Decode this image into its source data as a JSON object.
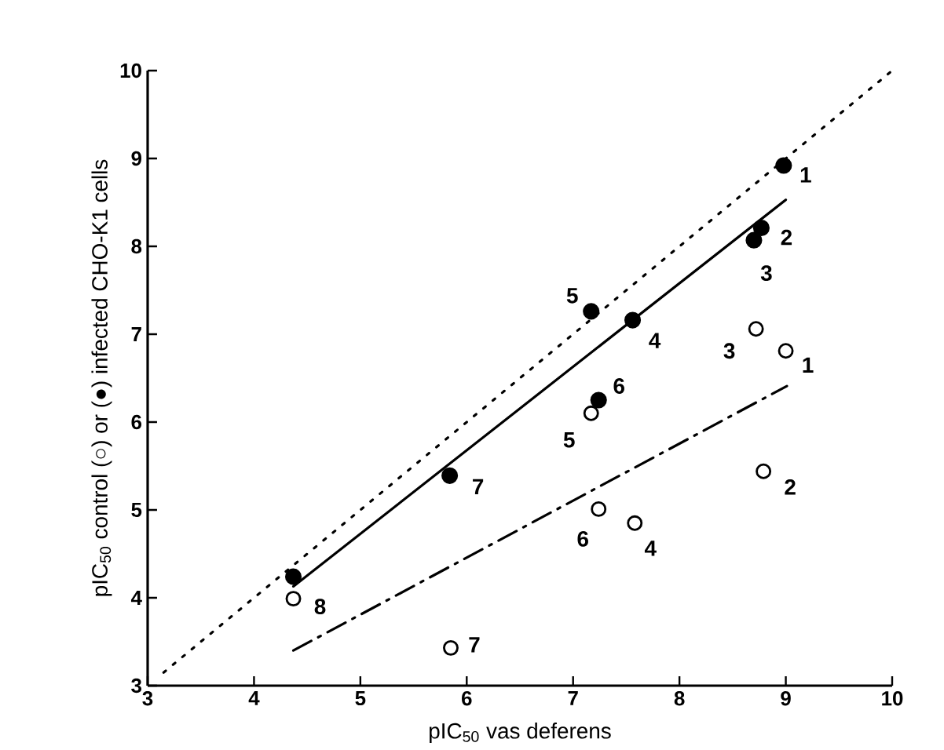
{
  "chart_data": {
    "type": "scatter",
    "xlabel": "pIC$_{50}$ vas deferens",
    "ylabel": "pIC$_{50}$ control (○) or (●) infected CHO-K1 cells",
    "xlim": [
      3,
      10
    ],
    "ylim": [
      3,
      10
    ],
    "xticks": [
      3,
      4,
      5,
      6,
      7,
      8,
      9,
      10
    ],
    "yticks": [
      3,
      4,
      5,
      6,
      7,
      8,
      9,
      10
    ],
    "series": [
      {
        "type": "line",
        "color": "#000000",
        "line_style": "dotted",
        "marker": "none",
        "x": [
          3.15,
          10
        ],
        "values": [
          3.15,
          10
        ]
      },
      {
        "type": "line",
        "color": "#000000",
        "line_style": "solid",
        "marker": "none",
        "x": [
          4.37,
          9.0
        ],
        "values": [
          4.13,
          8.53
        ]
      },
      {
        "type": "line",
        "color": "#000000",
        "line_style": "dashed",
        "marker": "none",
        "x": [
          4.37,
          9.01
        ],
        "values": [
          3.4,
          6.41
        ]
      },
      {
        "color": "#000000",
        "marker": "circle",
        "x": [
          8.98,
          8.77,
          8.7,
          7.56,
          7.17,
          7.24,
          5.84,
          4.37
        ],
        "values": [
          8.92,
          8.21,
          8.07,
          7.16,
          7.26,
          6.25,
          5.39,
          4.24
        ]
      },
      {
        "color": "#ffffff",
        "marker": "circle",
        "x": [
          9.0,
          8.79,
          8.72,
          7.58,
          7.17,
          7.24,
          5.85,
          4.37
        ],
        "values": [
          6.81,
          5.44,
          7.06,
          4.85,
          6.1,
          5.01,
          3.43,
          3.99
        ]
      }
    ],
    "annotations": [
      {
        "text": "1",
        "x": 8.98,
        "y": 8.92
      },
      {
        "text": "2",
        "x": 8.77,
        "y": 8.21
      },
      {
        "text": "3",
        "x": 8.7,
        "y": 8.07
      },
      {
        "text": "4",
        "x": 7.56,
        "y": 7.16
      },
      {
        "text": "5",
        "x": 7.17,
        "y": 7.26
      },
      {
        "text": "6",
        "x": 7.24,
        "y": 6.25
      },
      {
        "text": "7",
        "x": 5.84,
        "y": 5.39
      },
      {
        "text": "1",
        "x": 9.0,
        "y": 6.81
      },
      {
        "text": "2",
        "x": 8.79,
        "y": 5.44
      },
      {
        "text": "3",
        "x": 8.72,
        "y": 7.06
      },
      {
        "text": "4",
        "x": 7.58,
        "y": 4.85
      },
      {
        "text": "5",
        "x": 7.17,
        "y": 6.1
      },
      {
        "text": "6",
        "x": 7.24,
        "y": 5.01
      },
      {
        "text": "7",
        "x": 5.85,
        "y": 3.43
      },
      {
        "text": "8",
        "x": 4.37,
        "y": 3.99
      }
    ]
  }
}
